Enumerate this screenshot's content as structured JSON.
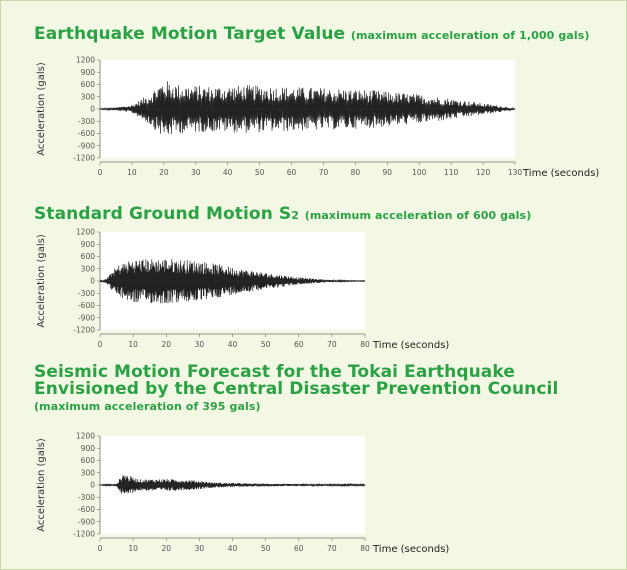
{
  "chart_data": [
    {
      "type": "line",
      "title": "Earthquake Motion Target Value",
      "subtitle": "(maximum acceleration of 1,000 gals)",
      "xlabel": "Time (seconds)",
      "ylabel": "Acceleration (gals)",
      "xlim": [
        0,
        130
      ],
      "ylim": [
        -1200,
        1200
      ],
      "x_ticks": [
        "0",
        "10",
        "20",
        "30",
        "40",
        "50",
        "60",
        "70",
        "80",
        "90",
        "100",
        "110",
        "120",
        "130"
      ],
      "y_ticks": [
        "1200",
        "900",
        "600",
        "300",
        "0",
        "-300",
        "-600",
        "-900",
        "-1200"
      ],
      "peak": 1000,
      "envelope": [
        [
          0,
          10
        ],
        [
          5,
          40
        ],
        [
          10,
          100
        ],
        [
          15,
          350
        ],
        [
          20,
          720
        ],
        [
          25,
          600
        ],
        [
          35,
          560
        ],
        [
          45,
          590
        ],
        [
          55,
          560
        ],
        [
          70,
          520
        ],
        [
          85,
          470
        ],
        [
          100,
          360
        ],
        [
          110,
          260
        ],
        [
          120,
          140
        ],
        [
          127,
          60
        ],
        [
          130,
          10
        ]
      ],
      "series_color": "#222222"
    },
    {
      "type": "line",
      "title": "Standard Ground Motion S",
      "title_sub": "2",
      "subtitle": "(maximum acceleration of 600 gals)",
      "xlabel": "Time (seconds)",
      "ylabel": "Acceleration (gals)",
      "xlim": [
        0,
        80
      ],
      "ylim": [
        -1200,
        1200
      ],
      "x_ticks": [
        "0",
        "10",
        "20",
        "30",
        "40",
        "50",
        "60",
        "70",
        "80"
      ],
      "y_ticks": [
        "1200",
        "900",
        "600",
        "300",
        "0",
        "-300",
        "-600",
        "-900",
        "-1200"
      ],
      "peak": 600,
      "envelope": [
        [
          0,
          5
        ],
        [
          2,
          60
        ],
        [
          4,
          280
        ],
        [
          6,
          420
        ],
        [
          10,
          540
        ],
        [
          20,
          560
        ],
        [
          30,
          500
        ],
        [
          40,
          340
        ],
        [
          50,
          200
        ],
        [
          60,
          90
        ],
        [
          70,
          25
        ],
        [
          75,
          10
        ],
        [
          80,
          8
        ]
      ],
      "series_color": "#222222"
    },
    {
      "type": "line",
      "title": "Seismic Motion Forecast for the Tokai Earthquake",
      "title_line2": "Envisioned by the Central Disaster Prevention Council",
      "subtitle": "(maximum acceleration of 395 gals)",
      "xlabel": "Time (seconds)",
      "ylabel": "Acceleration (gals)",
      "xlim": [
        0,
        80
      ],
      "ylim": [
        -1200,
        1200
      ],
      "x_ticks": [
        "0",
        "10",
        "20",
        "30",
        "40",
        "50",
        "60",
        "70",
        "80"
      ],
      "y_ticks": [
        "1200",
        "900",
        "600",
        "300",
        "0",
        "-300",
        "-600",
        "-900",
        "-1200"
      ],
      "peak": 395,
      "envelope": [
        [
          0,
          5
        ],
        [
          5,
          30
        ],
        [
          7,
          300
        ],
        [
          9,
          220
        ],
        [
          12,
          140
        ],
        [
          20,
          150
        ],
        [
          28,
          120
        ],
        [
          35,
          60
        ],
        [
          45,
          40
        ],
        [
          55,
          30
        ],
        [
          65,
          20
        ],
        [
          80,
          15
        ]
      ],
      "series_color": "#222222"
    }
  ]
}
